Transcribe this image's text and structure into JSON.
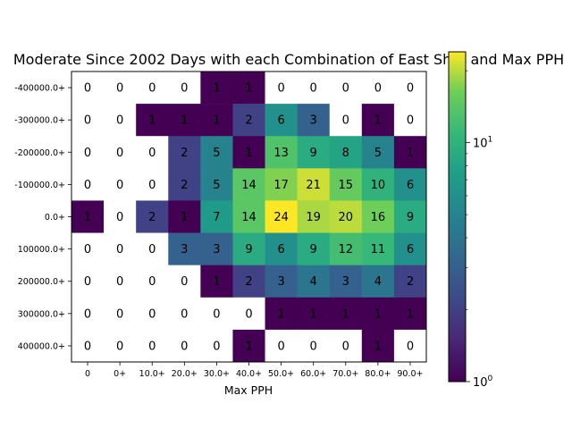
{
  "chart_data": {
    "type": "heatmap",
    "title": "Moderate Since 2002 Days with each Combination of East Shift and Max PPH",
    "xlabel": "Max PPH",
    "ylabel": "",
    "x_categories": [
      "0",
      "0+",
      "10.0+",
      "20.0+",
      "30.0+",
      "40.0+",
      "50.0+",
      "60.0+",
      "70.0+",
      "80.0+",
      "90.0+"
    ],
    "y_categories": [
      "-400000.0+",
      "-300000.0+",
      "-200000.0+",
      "-100000.0+",
      "0.0+",
      "100000.0+",
      "200000.0+",
      "300000.0+",
      "400000.0+"
    ],
    "values": [
      [
        0,
        0,
        0,
        0,
        1,
        1,
        0,
        0,
        0,
        0,
        0
      ],
      [
        0,
        0,
        1,
        1,
        1,
        2,
        6,
        3,
        0,
        1,
        0
      ],
      [
        0,
        0,
        0,
        2,
        5,
        1,
        13,
        9,
        8,
        5,
        1
      ],
      [
        0,
        0,
        0,
        2,
        5,
        14,
        17,
        21,
        15,
        10,
        6
      ],
      [
        1,
        0,
        2,
        1,
        7,
        14,
        24,
        19,
        20,
        16,
        9
      ],
      [
        0,
        0,
        0,
        3,
        3,
        9,
        6,
        9,
        12,
        11,
        6
      ],
      [
        0,
        0,
        0,
        0,
        1,
        2,
        3,
        4,
        3,
        4,
        2
      ],
      [
        0,
        0,
        0,
        0,
        0,
        0,
        1,
        1,
        1,
        1,
        1
      ],
      [
        0,
        0,
        0,
        0,
        0,
        1,
        0,
        0,
        0,
        1,
        0
      ]
    ],
    "color_scale": "log",
    "colormap": "viridis",
    "color_range": [
      1,
      24
    ],
    "zero_color": "#ffffff",
    "colorbar": {
      "position": "right",
      "tick_labels": [
        {
          "value": 1,
          "base": "10",
          "exp": "0"
        },
        {
          "value": 10,
          "base": "10",
          "exp": "1"
        }
      ]
    }
  }
}
